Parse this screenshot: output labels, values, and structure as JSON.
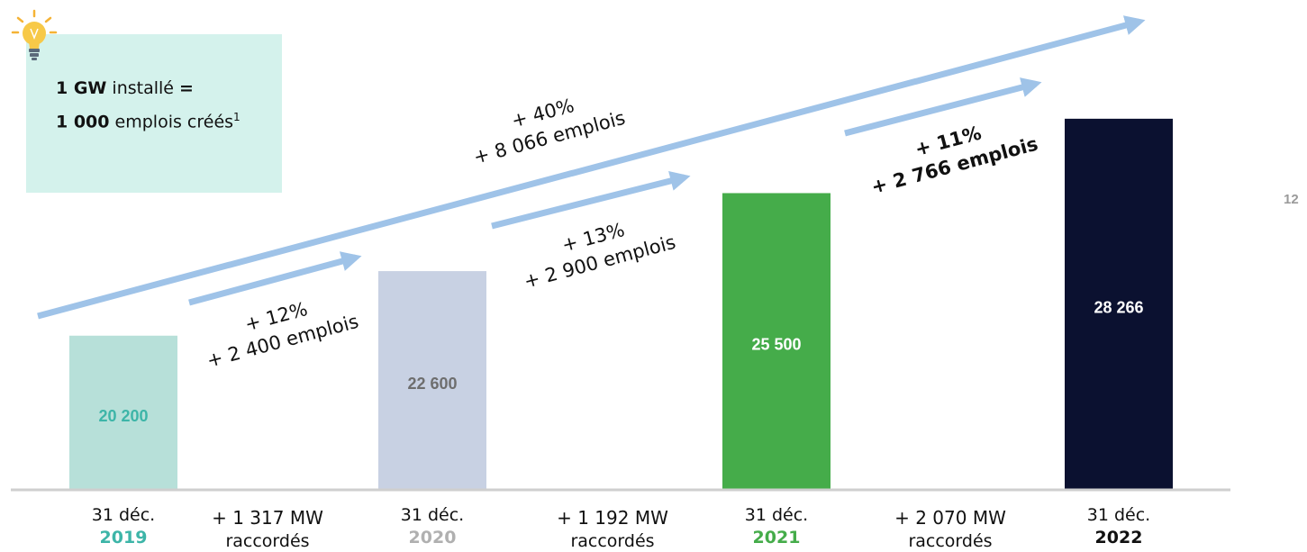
{
  "info_box": {
    "line1_bold": "1 GW",
    "line1_text": " installé ",
    "line1_eq": "=",
    "line2_bold": "1 000",
    "line2_text": " emplois créés",
    "line2_sup": "1"
  },
  "page_number": "12",
  "colors": {
    "bar_2019": "#b7e0d9",
    "bar_2020": "#c8d1e3",
    "bar_2021": "#45ac4a",
    "bar_2022": "#0b1130",
    "arrow": "#9fc3e8",
    "info_bg": "#d4f2ec",
    "value_2019": "#3db5a8",
    "value_2020": "#6e6e6e",
    "value_2021": "#ffffff",
    "value_2022": "#ffffff",
    "year_2019": "#3db5a8",
    "year_2020": "#b0b0b0",
    "year_2021": "#45ac4a",
    "year_2022": "#111111"
  },
  "chart_data": {
    "type": "bar",
    "categories": [
      "31 déc. 2019",
      "31 déc. 2020",
      "31 déc. 2021",
      "31 déc. 2022"
    ],
    "date_prefix": "31 déc.",
    "years": [
      "2019",
      "2020",
      "2021",
      "2022"
    ],
    "values": [
      20200,
      22600,
      25500,
      28266
    ],
    "value_labels": [
      "20 200",
      "22 600",
      "25 500",
      "28 266"
    ],
    "ylim": [
      14500,
      29500
    ],
    "gap_labels": [
      {
        "line1": "+ 1 317 MW",
        "line2": "raccordés"
      },
      {
        "line1": "+ 1 192 MW",
        "line2": "raccordés"
      },
      {
        "line1": "+ 2 070 MW",
        "line2": "raccordés"
      }
    ],
    "annotations": [
      {
        "line1": "+ 12%",
        "line2": "+ 2 400 emplois",
        "bold": false
      },
      {
        "line1": "+ 13%",
        "line2": "+ 2 900 emplois",
        "bold": false
      },
      {
        "line1": "+ 11%",
        "line2": "+ 2 766 emplois",
        "bold": true
      },
      {
        "line1": "+ 40%",
        "line2": "+ 8 066 emplois",
        "bold": false
      }
    ]
  }
}
